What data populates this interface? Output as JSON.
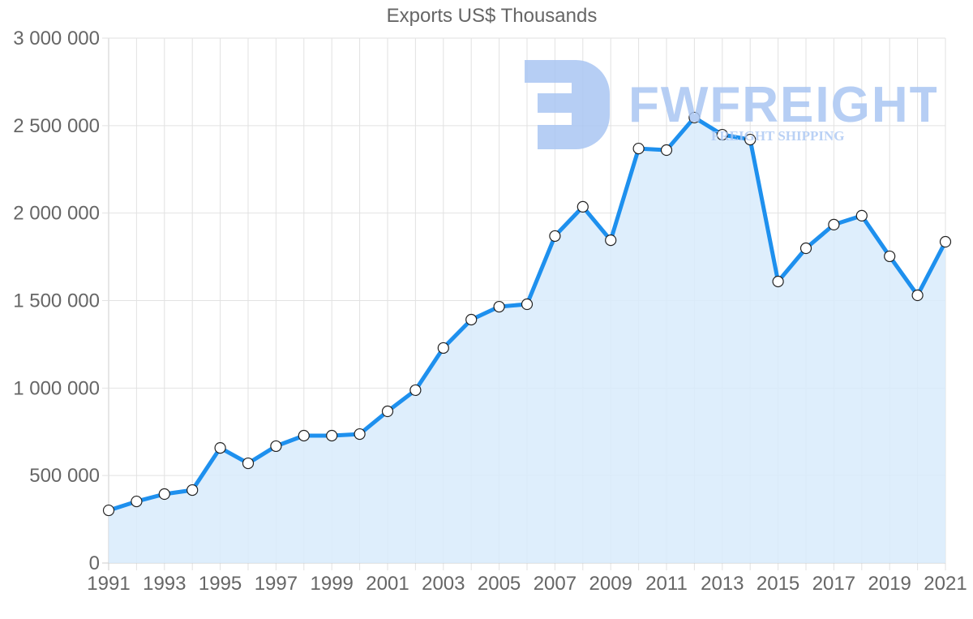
{
  "chart_data": {
    "type": "area",
    "title": "Exports US$ Thousands",
    "xlabel": "",
    "ylabel": "",
    "x": [
      1991,
      1992,
      1993,
      1994,
      1995,
      1996,
      1997,
      1998,
      1999,
      2000,
      2001,
      2002,
      2003,
      2004,
      2005,
      2006,
      2007,
      2008,
      2009,
      2010,
      2011,
      2012,
      2013,
      2014,
      2015,
      2016,
      2017,
      2018,
      2019,
      2020,
      2021
    ],
    "series": [
      {
        "name": "Exports US$ Thousands",
        "values": [
          301000,
          352000,
          394000,
          417000,
          658000,
          570000,
          668000,
          728000,
          728000,
          737000,
          867000,
          988000,
          1229000,
          1391000,
          1465000,
          1479000,
          1869000,
          2036000,
          1845000,
          2369000,
          2360000,
          2546000,
          2448000,
          2420000,
          1609000,
          1799000,
          1934000,
          1985000,
          1753000,
          1530000,
          1836000
        ]
      }
    ],
    "ylim": [
      0,
      3000000
    ],
    "yticks": [
      0,
      500000,
      1000000,
      1500000,
      2000000,
      2500000,
      3000000
    ],
    "ytick_labels": [
      "0",
      "500 000",
      "1 000 000",
      "1 500 000",
      "2 000 000",
      "2 500 000",
      "3 000 000"
    ],
    "xtick_labels": [
      "1991",
      "1993",
      "1995",
      "1997",
      "1999",
      "2001",
      "2003",
      "2005",
      "2007",
      "2009",
      "2011",
      "2013",
      "2015",
      "2017",
      "2019",
      "2021"
    ],
    "grid": true,
    "legend": "none",
    "colors": {
      "line": "#1e90ee",
      "fill": "#d8ebfc",
      "grid": "#e2e2e2",
      "point_fill": "#ffffff",
      "point_stroke": "#222222"
    }
  },
  "watermark": {
    "brand": "FWFREIGHT",
    "tagline": "FREIGHT SHIPPING",
    "color": "#a9c5f2"
  }
}
